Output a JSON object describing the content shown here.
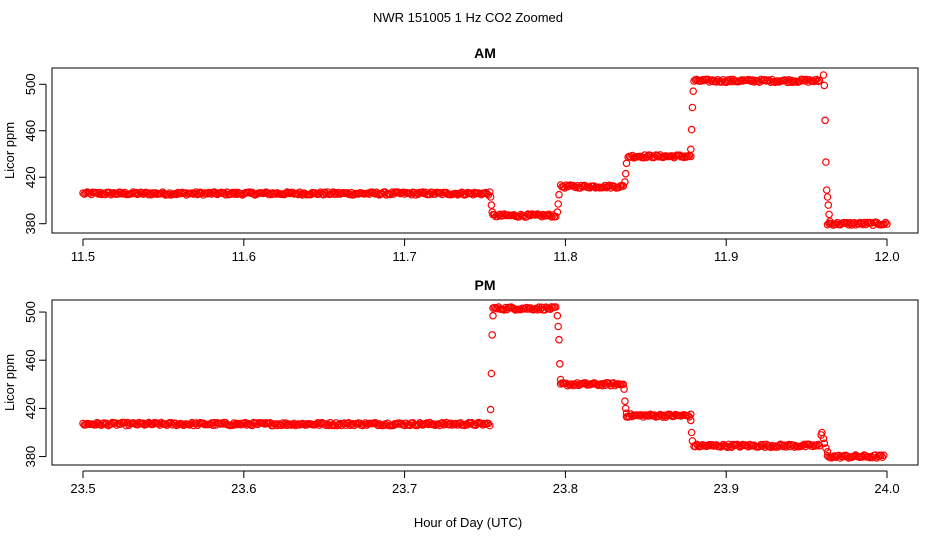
{
  "title": "NWR  151005  1 Hz CO2 Zoomed",
  "xlabel": "Hour of Day (UTC)",
  "colors": {
    "points": "#ff0000",
    "axis": "#000000",
    "background": "#ffffff"
  },
  "chart_data": [
    {
      "type": "scatter",
      "title": "AM",
      "ylabel": "Licor ppm",
      "xlim": [
        11.5,
        12.0
      ],
      "ylim": [
        372,
        514
      ],
      "xticks": [
        11.5,
        11.6,
        11.7,
        11.8,
        11.9,
        12.0
      ],
      "xtick_labels": [
        "11.5",
        "11.6",
        "11.7",
        "11.8",
        "11.9",
        "12.0"
      ],
      "yticks": [
        380,
        420,
        460,
        500
      ],
      "ytick_labels": [
        "380",
        "420",
        "460",
        "500"
      ],
      "grid": false,
      "legend": "none",
      "plateaus": [
        {
          "x_start": 11.5,
          "x_end": 11.753,
          "y": 406
        },
        {
          "x_start": 11.755,
          "x_end": 11.794,
          "y": 387
        },
        {
          "x_start": 11.797,
          "x_end": 11.836,
          "y": 412
        },
        {
          "x_start": 11.839,
          "x_end": 11.878,
          "y": 438
        },
        {
          "x_start": 11.88,
          "x_end": 11.958,
          "y": 503
        },
        {
          "x_start": 11.963,
          "x_end": 12.0,
          "y": 380
        }
      ],
      "transition_points": [
        {
          "x": 11.7535,
          "y": 403
        },
        {
          "x": 11.754,
          "y": 396
        },
        {
          "x": 11.7545,
          "y": 390
        },
        {
          "x": 11.795,
          "y": 390
        },
        {
          "x": 11.7955,
          "y": 397
        },
        {
          "x": 11.796,
          "y": 405
        },
        {
          "x": 11.837,
          "y": 416
        },
        {
          "x": 11.8375,
          "y": 423
        },
        {
          "x": 11.838,
          "y": 432
        },
        {
          "x": 11.878,
          "y": 444
        },
        {
          "x": 11.8785,
          "y": 461
        },
        {
          "x": 11.879,
          "y": 480
        },
        {
          "x": 11.8795,
          "y": 494
        },
        {
          "x": 11.9605,
          "y": 508
        },
        {
          "x": 11.961,
          "y": 499
        },
        {
          "x": 11.9615,
          "y": 469
        },
        {
          "x": 11.962,
          "y": 433
        },
        {
          "x": 11.9625,
          "y": 409
        },
        {
          "x": 11.963,
          "y": 403
        },
        {
          "x": 11.9635,
          "y": 396
        },
        {
          "x": 11.964,
          "y": 388
        },
        {
          "x": 11.9645,
          "y": 382
        }
      ]
    },
    {
      "type": "scatter",
      "title": "PM",
      "ylabel": "Licor ppm",
      "xlim": [
        23.5,
        24.0
      ],
      "ylim": [
        373,
        510
      ],
      "xticks": [
        23.5,
        23.6,
        23.7,
        23.8,
        23.9,
        24.0
      ],
      "xtick_labels": [
        "23.5",
        "23.6",
        "23.7",
        "23.8",
        "23.9",
        "24.0"
      ],
      "yticks": [
        380,
        420,
        460,
        500
      ],
      "ytick_labels": [
        "380",
        "420",
        "460",
        "500"
      ],
      "grid": false,
      "legend": "none",
      "plateaus": [
        {
          "x_start": 23.5,
          "x_end": 23.753,
          "y": 407
        },
        {
          "x_start": 23.755,
          "x_end": 23.794,
          "y": 503
        },
        {
          "x_start": 23.797,
          "x_end": 23.836,
          "y": 440
        },
        {
          "x_start": 23.838,
          "x_end": 23.878,
          "y": 414
        },
        {
          "x_start": 23.88,
          "x_end": 23.958,
          "y": 389
        },
        {
          "x_start": 23.963,
          "x_end": 23.998,
          "y": 380
        }
      ],
      "transition_points": [
        {
          "x": 23.7535,
          "y": 419
        },
        {
          "x": 23.754,
          "y": 449
        },
        {
          "x": 23.7545,
          "y": 481
        },
        {
          "x": 23.755,
          "y": 497
        },
        {
          "x": 23.795,
          "y": 497
        },
        {
          "x": 23.7955,
          "y": 488
        },
        {
          "x": 23.796,
          "y": 477
        },
        {
          "x": 23.7965,
          "y": 457
        },
        {
          "x": 23.797,
          "y": 444
        },
        {
          "x": 23.8365,
          "y": 436
        },
        {
          "x": 23.837,
          "y": 426
        },
        {
          "x": 23.8375,
          "y": 420
        },
        {
          "x": 23.838,
          "y": 416
        },
        {
          "x": 23.878,
          "y": 410
        },
        {
          "x": 23.8785,
          "y": 400
        },
        {
          "x": 23.879,
          "y": 393
        },
        {
          "x": 23.959,
          "y": 398
        },
        {
          "x": 23.9595,
          "y": 400
        },
        {
          "x": 23.9605,
          "y": 395
        },
        {
          "x": 23.961,
          "y": 391
        },
        {
          "x": 23.962,
          "y": 387
        },
        {
          "x": 23.963,
          "y": 384
        }
      ]
    }
  ]
}
